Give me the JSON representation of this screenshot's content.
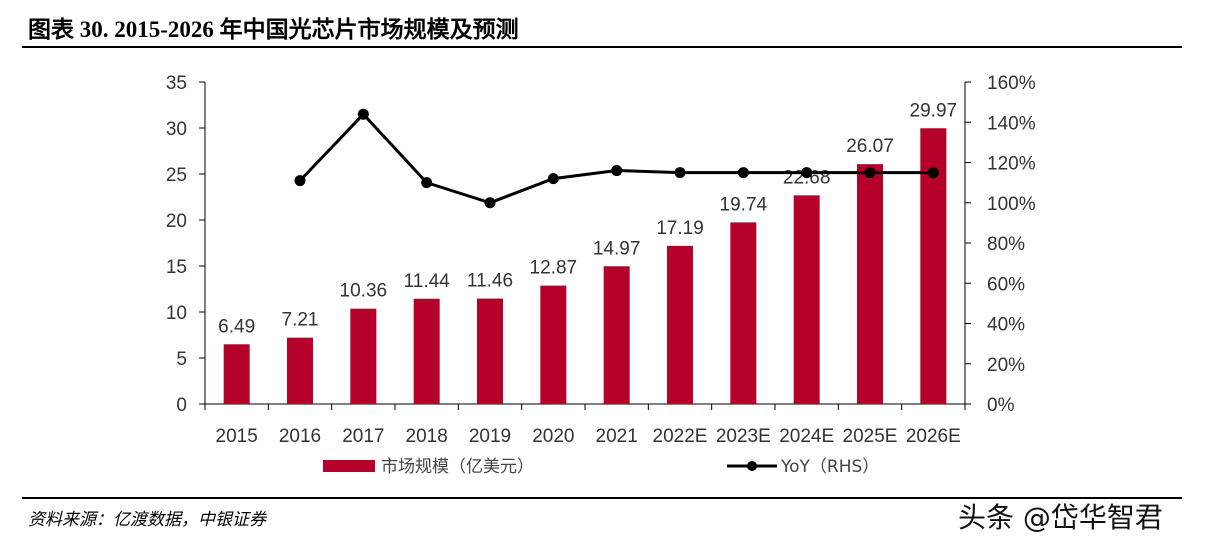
{
  "title": "图表 30. 2015-2026 年中国光芯片市场规模及预测",
  "source": "资料来源：亿渡数据，中银证券",
  "watermark": "头条 @岱华智君",
  "chart_data": {
    "type": "bar+line",
    "categories": [
      "2015",
      "2016",
      "2017",
      "2018",
      "2019",
      "2020",
      "2021",
      "2022E",
      "2023E",
      "2024E",
      "2025E",
      "2026E"
    ],
    "series": [
      {
        "name": "市场规模（亿美元）",
        "type": "bar",
        "axis": "left",
        "color": "#B5002A",
        "values": [
          6.49,
          7.21,
          10.36,
          11.44,
          11.46,
          12.87,
          14.97,
          17.19,
          19.74,
          22.68,
          26.07,
          29.97
        ],
        "labels": [
          "6.49",
          "7.21",
          "10.36",
          "11.44",
          "11.46",
          "12.87",
          "14.97",
          "17.19",
          "19.74",
          "22.68",
          "26.07",
          "29.97"
        ]
      },
      {
        "name": "YoY（RHS）",
        "type": "line",
        "axis": "right",
        "color": "#000000",
        "values": [
          null,
          111,
          144,
          110,
          100,
          112,
          116,
          115,
          115,
          115,
          115,
          115
        ]
      }
    ],
    "ylim_left": [
      0,
      35
    ],
    "yticks_left": [
      "0",
      "5",
      "10",
      "15",
      "20",
      "25",
      "30",
      "35"
    ],
    "ylim_right": [
      0,
      160
    ],
    "yticks_right": [
      "0%",
      "20%",
      "40%",
      "60%",
      "80%",
      "100%",
      "120%",
      "140%",
      "160%"
    ],
    "grid": false,
    "legend": "bottom"
  }
}
